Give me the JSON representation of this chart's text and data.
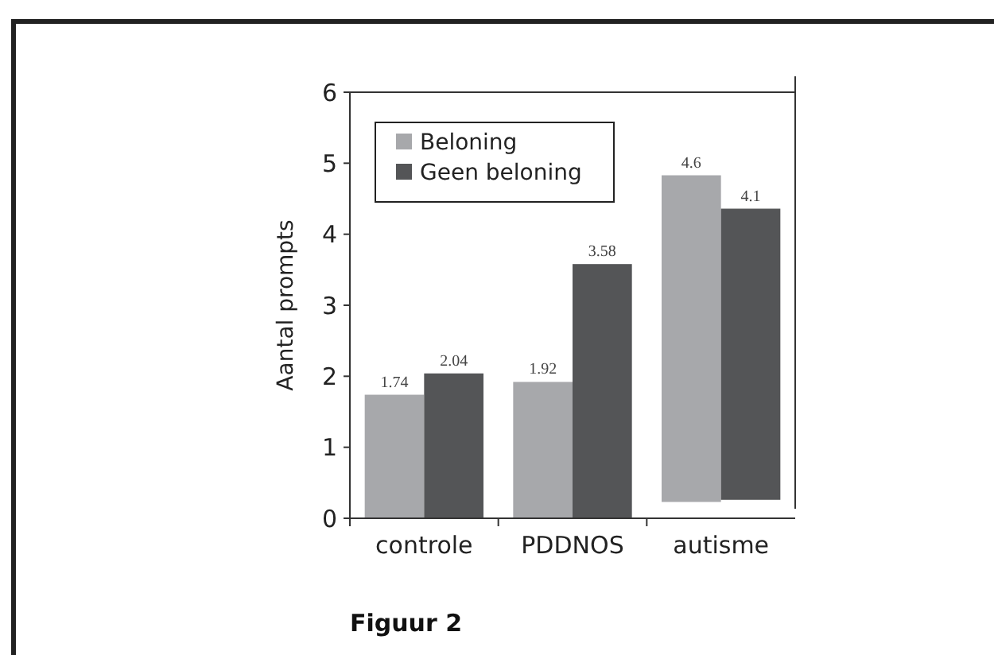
{
  "chart_data": {
    "type": "bar",
    "title": "Figuur 2",
    "ylabel": "Aantal prompts",
    "categories": [
      "controle",
      "PDDNOS",
      "autisme"
    ],
    "series": [
      {
        "name": "Beloning",
        "color": "#a7a8ab",
        "values": [
          1.74,
          1.92,
          4.6
        ],
        "base": [
          0,
          0,
          0.23
        ]
      },
      {
        "name": "Geen beloning",
        "color": "#545557",
        "values": [
          2.04,
          3.58,
          4.1
        ],
        "base": [
          0,
          0,
          0.26
        ]
      }
    ],
    "ylim": [
      0,
      6
    ],
    "yticks": [
      0,
      1,
      2,
      3,
      4,
      5,
      6
    ],
    "grid": false,
    "legend": "top left",
    "data_labels": true
  }
}
